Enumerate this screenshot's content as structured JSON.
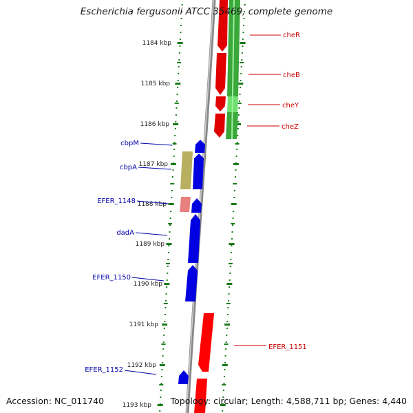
{
  "title": "Escherichia fergusonii ATCC 35469, complete genome",
  "footer": {
    "accession": "Accession: NC_011740",
    "summary": "Topology: circular; Length: 4,588,711 bp; Genes: 4,440"
  },
  "colors": {
    "forward_cds": "#e00000",
    "reverse_cds": "#0000e0",
    "rna_gene": "#b8b060",
    "pseudo_gene": "#e88080",
    "track_green": "#40b040",
    "tick_green": "#1a7a1a",
    "backbone": "#8a8a8a",
    "label_red": "#cc0000",
    "label_blue": "#0000aa"
  },
  "scale_ticks": [
    "1184 kbp",
    "1185 kbp",
    "1186 kbp",
    "1187 kbp",
    "1188 kbp",
    "1189 kbp",
    "1190 kbp",
    "1191 kbp",
    "1192 kbp",
    "1193 kbp"
  ],
  "gene_labels_right": [
    "cheR",
    "cheB",
    "cheY",
    "cheZ",
    "EFER_1151"
  ],
  "gene_labels_left": [
    "cbpM",
    "cbpA",
    "EFER_1148",
    "dadA",
    "EFER_1150",
    "EFER_1152"
  ]
}
